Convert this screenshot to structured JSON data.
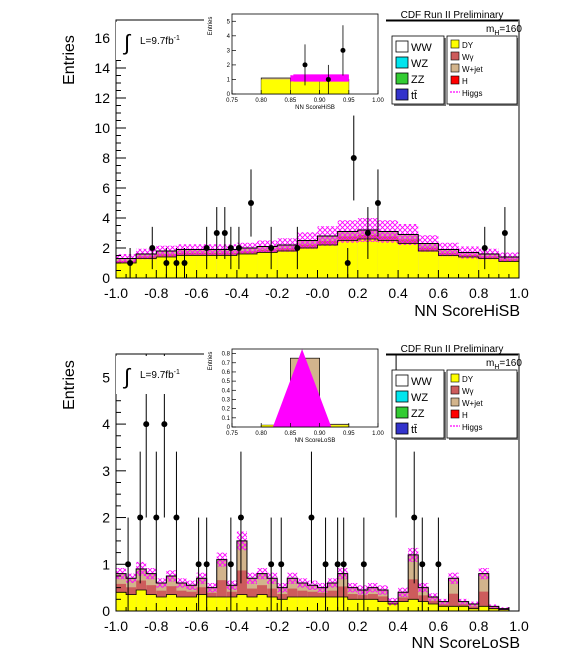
{
  "colors": {
    "DY": "#ffff00",
    "W+jet": "#d2b48c",
    "Wgamma": "#cd5c5c",
    "H": "#ff0000",
    "Higgs": "#ff00ff",
    "WW": "#ffffff",
    "WZ": "#00e5ee",
    "ZZ": "#33cc33",
    "ttbar": "#3333cc",
    "data": "#000000"
  },
  "legend": {
    "left": [
      "WW",
      "WZ",
      "ZZ",
      "tt̄"
    ],
    "right": [
      "DY",
      "Wγ",
      "W+jet",
      "H",
      "Higgs"
    ],
    "mass_label": "m",
    "mass_sub": "H",
    "mass_value": "=160"
  },
  "lumi": {
    "label": "L=9.7fb",
    "sup": "-1"
  },
  "chart_data": [
    {
      "type": "bar",
      "title": "CDF Run II Preliminary",
      "xlabel": "NN ScoreHiSB",
      "ylabel": "Entries",
      "xlim": [
        -1.0,
        1.0
      ],
      "ylim": [
        0,
        17.2
      ],
      "xticks": [
        "-1.0",
        "-0.8",
        "-0.6",
        "-0.4",
        "-0.2",
        "-0.0",
        "0.2",
        "0.4",
        "0.6",
        "0.8",
        "1.0"
      ],
      "xtick_values": [
        -1.0,
        -0.8,
        -0.6,
        -0.4,
        -0.2,
        0.0,
        0.2,
        0.4,
        0.6,
        0.8,
        1.0
      ],
      "yticks": [
        "0",
        "2",
        "4",
        "6",
        "8",
        "10",
        "12",
        "14",
        "16"
      ],
      "ytick_values": [
        0,
        2,
        4,
        6,
        8,
        10,
        12,
        14,
        16
      ],
      "bin_edges": [
        -1.0,
        -0.9,
        -0.8,
        -0.7,
        -0.6,
        -0.5,
        -0.4,
        -0.3,
        -0.2,
        -0.1,
        0.0,
        0.1,
        0.2,
        0.3,
        0.4,
        0.5,
        0.6,
        0.7,
        0.8,
        0.9,
        1.0
      ],
      "stack_top": [
        1.3,
        1.6,
        1.8,
        1.9,
        1.9,
        1.9,
        2.0,
        2.1,
        2.2,
        2.5,
        2.8,
        3.1,
        3.2,
        3.1,
        2.9,
        2.3,
        1.9,
        1.7,
        1.6,
        1.4
      ],
      "dy_top": [
        1.0,
        1.3,
        1.4,
        1.5,
        1.5,
        1.5,
        1.6,
        1.7,
        1.8,
        2.0,
        2.2,
        2.5,
        2.6,
        2.5,
        2.3,
        1.8,
        1.5,
        1.4,
        1.3,
        1.1
      ],
      "band_halfwidth": [
        0.3,
        0.35,
        0.35,
        0.35,
        0.35,
        0.35,
        0.35,
        0.4,
        0.45,
        0.55,
        0.65,
        0.75,
        0.8,
        0.75,
        0.7,
        0.55,
        0.45,
        0.4,
        0.35,
        0.3
      ],
      "data_points": [
        {
          "x": -0.93,
          "y": 1,
          "err": 1.0
        },
        {
          "x": -0.82,
          "y": 2,
          "err": 1.41
        },
        {
          "x": -0.75,
          "y": 1,
          "err": 1.0
        },
        {
          "x": -0.7,
          "y": 1,
          "err": 1.0
        },
        {
          "x": -0.66,
          "y": 1,
          "err": 1.0
        },
        {
          "x": -0.55,
          "y": 2,
          "err": 1.41
        },
        {
          "x": -0.5,
          "y": 3,
          "err": 1.73
        },
        {
          "x": -0.46,
          "y": 3,
          "err": 1.73
        },
        {
          "x": -0.43,
          "y": 2,
          "err": 1.41
        },
        {
          "x": -0.39,
          "y": 2,
          "err": 1.41
        },
        {
          "x": -0.33,
          "y": 5,
          "err": 2.24
        },
        {
          "x": -0.23,
          "y": 2,
          "err": 1.41
        },
        {
          "x": -0.1,
          "y": 2,
          "err": 1.41
        },
        {
          "x": 0.15,
          "y": 1,
          "err": 1.0
        },
        {
          "x": 0.18,
          "y": 8,
          "err": 2.83
        },
        {
          "x": 0.25,
          "y": 3,
          "err": 1.73
        },
        {
          "x": 0.3,
          "y": 5,
          "err": 2.24
        },
        {
          "x": 0.83,
          "y": 2,
          "err": 1.41
        },
        {
          "x": 0.93,
          "y": 3,
          "err": 1.73
        }
      ],
      "inset": {
        "xlabel": "NN ScoreHiSB",
        "ylabel": "Entries",
        "xlim": [
          0.75,
          1.0
        ],
        "ylim": [
          0,
          5.5
        ],
        "xticks": [
          "0.75",
          "0.80",
          "0.85",
          "0.90",
          "0.95",
          "1.00"
        ],
        "xtick_values": [
          0.75,
          0.8,
          0.85,
          0.9,
          0.95,
          1.0
        ],
        "yticks": [
          "0",
          "1",
          "2",
          "3",
          "4",
          "5"
        ],
        "ytick_values": [
          0,
          1,
          2,
          3,
          4,
          5
        ],
        "bin_edges": [
          0.75,
          0.8,
          0.85,
          0.9,
          0.95,
          1.0
        ],
        "stack_top": [
          0,
          1.1,
          1.1,
          1.0,
          0
        ],
        "dy_top": [
          0,
          1.0,
          1.0,
          0.9,
          0
        ],
        "higgs_band": {
          "x": [
            0.85,
            0.95
          ],
          "y": [
            0.9,
            1.3
          ]
        },
        "data_points": [
          {
            "x": 0.875,
            "y": 2,
            "err": 1.41
          },
          {
            "x": 0.915,
            "y": 1,
            "err": 1.0
          },
          {
            "x": 0.94,
            "y": 3,
            "err": 1.73
          }
        ]
      }
    },
    {
      "type": "bar",
      "title": "CDF Run II Preliminary",
      "xlabel": "NN ScoreLoSB",
      "ylabel": "Entries",
      "xlim": [
        -1.0,
        1.0
      ],
      "ylim": [
        0,
        5.5
      ],
      "xticks": [
        "-1.0",
        "-0.8",
        "-0.6",
        "-0.4",
        "-0.2",
        "-0.0",
        "0.2",
        "0.4",
        "0.6",
        "0.8",
        "1.0"
      ],
      "xtick_values": [
        -1.0,
        -0.8,
        -0.6,
        -0.4,
        -0.2,
        0.0,
        0.2,
        0.4,
        0.6,
        0.8,
        1.0
      ],
      "yticks": [
        "0",
        "1",
        "2",
        "3",
        "4",
        "5"
      ],
      "ytick_values": [
        0,
        1,
        2,
        3,
        4,
        5
      ],
      "bin_edges": [
        -1.0,
        -0.95,
        -0.9,
        -0.85,
        -0.8,
        -0.75,
        -0.7,
        -0.65,
        -0.6,
        -0.55,
        -0.5,
        -0.45,
        -0.4,
        -0.35,
        -0.3,
        -0.25,
        -0.2,
        -0.15,
        -0.1,
        -0.05,
        0.0,
        0.05,
        0.1,
        0.15,
        0.2,
        0.25,
        0.3,
        0.35,
        0.4,
        0.45,
        0.5,
        0.55,
        0.6,
        0.65,
        0.7,
        0.75,
        0.8,
        0.85,
        0.9,
        0.95,
        1.0
      ],
      "stack_top": [
        0.8,
        0.7,
        0.9,
        0.8,
        0.6,
        0.75,
        0.6,
        0.55,
        0.7,
        0.5,
        1.1,
        0.55,
        1.5,
        0.7,
        0.8,
        0.7,
        0.5,
        0.7,
        0.6,
        0.55,
        0.5,
        0.6,
        0.8,
        0.5,
        0.45,
        0.5,
        0.45,
        0.2,
        0.4,
        1.2,
        0.5,
        0.3,
        0.2,
        0.7,
        0.2,
        0.15,
        0.8,
        0.1,
        0.05,
        0.0
      ],
      "dy_top": [
        0.4,
        0.35,
        0.45,
        0.35,
        0.3,
        0.35,
        0.3,
        0.3,
        0.35,
        0.3,
        0.3,
        0.3,
        0.35,
        0.3,
        0.35,
        0.3,
        0.25,
        0.3,
        0.3,
        0.3,
        0.3,
        0.3,
        0.3,
        0.25,
        0.25,
        0.25,
        0.2,
        0.15,
        0.2,
        0.25,
        0.2,
        0.15,
        0.1,
        0.1,
        0.1,
        0.05,
        0.1,
        0.05,
        0.03,
        0.0
      ],
      "band_halfwidth": [
        0.12,
        0.1,
        0.15,
        0.12,
        0.1,
        0.12,
        0.1,
        0.1,
        0.12,
        0.1,
        0.15,
        0.1,
        0.2,
        0.12,
        0.12,
        0.12,
        0.1,
        0.12,
        0.1,
        0.1,
        0.1,
        0.1,
        0.12,
        0.1,
        0.1,
        0.1,
        0.1,
        0.08,
        0.1,
        0.15,
        0.1,
        0.08,
        0.06,
        0.12,
        0.06,
        0.05,
        0.12,
        0.04,
        0.03,
        0.0
      ],
      "data_points": [
        {
          "x": -0.94,
          "y": 1,
          "err": 1.0
        },
        {
          "x": -0.88,
          "y": 2,
          "err": 1.41
        },
        {
          "x": -0.85,
          "y": 4,
          "err": 2.0
        },
        {
          "x": -0.8,
          "y": 2,
          "err": 1.41
        },
        {
          "x": -0.76,
          "y": 4,
          "err": 2.0
        },
        {
          "x": -0.7,
          "y": 2,
          "err": 1.41
        },
        {
          "x": -0.59,
          "y": 1,
          "err": 1.0
        },
        {
          "x": -0.55,
          "y": 1,
          "err": 1.0
        },
        {
          "x": -0.43,
          "y": 1,
          "err": 1.0
        },
        {
          "x": -0.38,
          "y": 2,
          "err": 1.41
        },
        {
          "x": -0.23,
          "y": 1,
          "err": 1.0
        },
        {
          "x": -0.18,
          "y": 1,
          "err": 1.0
        },
        {
          "x": -0.03,
          "y": 2,
          "err": 1.41
        },
        {
          "x": 0.04,
          "y": 1,
          "err": 1.0
        },
        {
          "x": 0.1,
          "y": 1,
          "err": 1.0
        },
        {
          "x": 0.13,
          "y": 1,
          "err": 1.0
        },
        {
          "x": 0.23,
          "y": 1,
          "err": 1.0
        },
        {
          "x": 0.39,
          "y": 4,
          "err": 2.0
        },
        {
          "x": 0.48,
          "y": 2,
          "err": 1.41
        },
        {
          "x": 0.52,
          "y": 1,
          "err": 1.0
        },
        {
          "x": 0.6,
          "y": 1,
          "err": 1.0
        }
      ],
      "inset": {
        "xlabel": "NN ScoreLoSB",
        "ylabel": "Entries",
        "xlim": [
          0.75,
          1.0
        ],
        "ylim": [
          0,
          0.85
        ],
        "xticks": [
          "0.75",
          "0.80",
          "0.85",
          "0.90",
          "0.95",
          "1.00"
        ],
        "xtick_values": [
          0.75,
          0.8,
          0.85,
          0.9,
          0.95,
          1.0
        ],
        "yticks": [
          "0",
          "0.1",
          "0.2",
          "0.3",
          "0.4",
          "0.5",
          "0.6",
          "0.7",
          "0.8"
        ],
        "ytick_values": [
          0,
          0.1,
          0.2,
          0.3,
          0.4,
          0.5,
          0.6,
          0.7,
          0.8
        ],
        "bin_edges": [
          0.75,
          0.8,
          0.85,
          0.9,
          0.95,
          1.0
        ],
        "stack_top": [
          0,
          0.02,
          0.75,
          0.03,
          0
        ],
        "dy_top": [
          0,
          0.02,
          0.02,
          0.02,
          0
        ],
        "higgs_band": {
          "x": [
            0.82,
            0.92
          ],
          "y": [
            0.0,
            0.85
          ]
        },
        "data_points": []
      }
    }
  ]
}
